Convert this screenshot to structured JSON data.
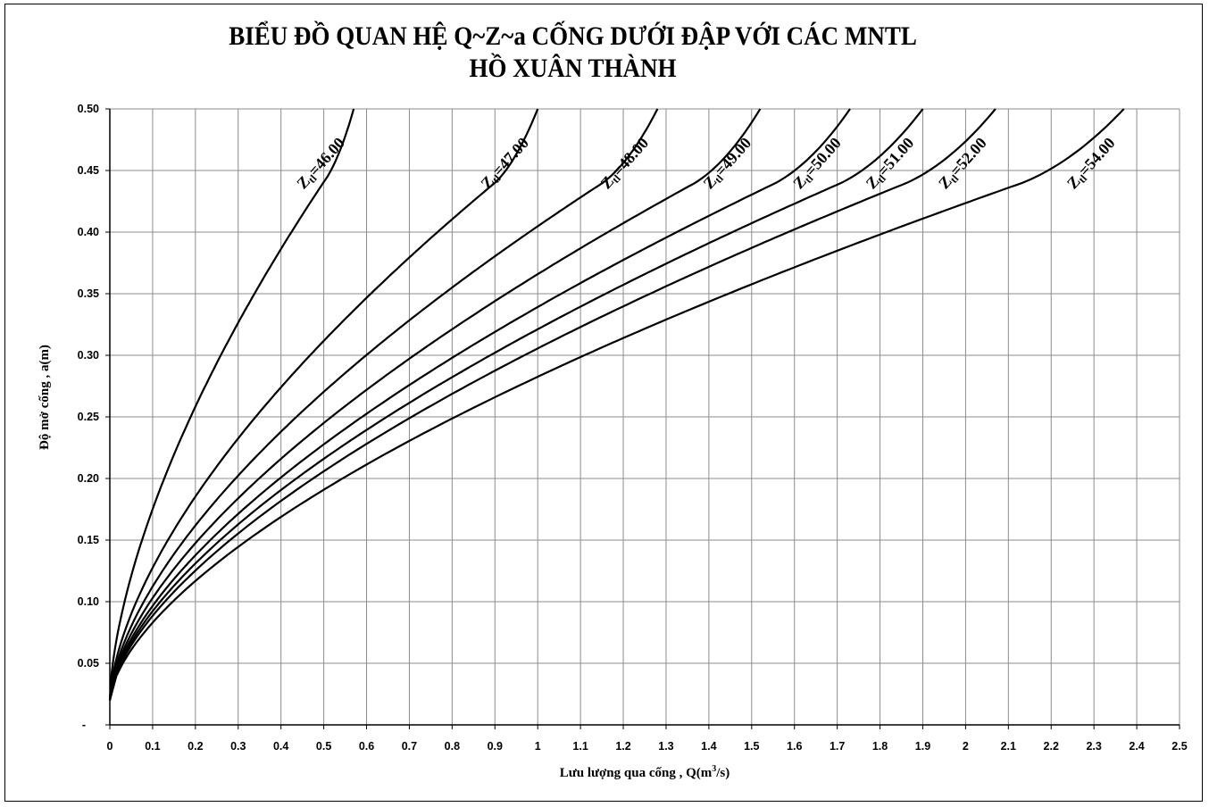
{
  "chart_data": {
    "type": "line",
    "title": "BIỂU ĐỒ QUAN HỆ Q~Z~a CỐNG DƯỚI ĐẬP VỚI CÁC MNTL",
    "subtitle": "HỒ XUÂN THÀNH",
    "xlabel_main": "Lưu lượng qua cống , Q(m",
    "xlabel_sup": "3",
    "xlabel_end": "/s)",
    "ylabel": "Độ mở cống , a(m)",
    "xlim": [
      0,
      2.5
    ],
    "ylim": [
      0,
      0.5
    ],
    "grid": true,
    "x_ticks": [
      "0",
      "0.1",
      "0.2",
      "0.3",
      "0.4",
      "0.5",
      "0.6",
      "0.7",
      "0.8",
      "0.9",
      "1",
      "1.1",
      "1.2",
      "1.3",
      "1.4",
      "1.5",
      "1.6",
      "1.7",
      "1.8",
      "1.9",
      "2",
      "2.1",
      "2.2",
      "2.3",
      "2.4",
      "2.5"
    ],
    "y_ticks": [
      "-",
      "0.05",
      "0.10",
      "0.15",
      "0.20",
      "0.25",
      "0.30",
      "0.35",
      "0.40",
      "0.45",
      "0.50"
    ],
    "series": [
      {
        "name": "Ztl=46.00",
        "label_main": "Z",
        "label_sub": "tl",
        "label_val": "=46.00",
        "qmax": 0.57,
        "a_knee": 0.44
      },
      {
        "name": "Ztl=47.00",
        "label_main": "Z",
        "label_sub": "tl",
        "label_val": "=47.00",
        "qmax": 1.0,
        "a_knee": 0.45
      },
      {
        "name": "Ztl=48.00",
        "label_main": "Z",
        "label_sub": "tl",
        "label_val": "=48.00",
        "qmax": 1.28,
        "a_knee": 0.45
      },
      {
        "name": "Ztl=49.00",
        "label_main": "Z",
        "label_sub": "tl",
        "label_val": "=49.00",
        "qmax": 1.52,
        "a_knee": 0.45
      },
      {
        "name": "Ztl=50.00",
        "label_main": "Z",
        "label_sub": "tl",
        "label_val": "=50.00",
        "qmax": 1.73,
        "a_knee": 0.45
      },
      {
        "name": "Ztl=51.00",
        "label_main": "Z",
        "label_sub": "tl",
        "label_val": "=51.00",
        "qmax": 1.9,
        "a_knee": 0.45
      },
      {
        "name": "Ztl=52.00",
        "label_main": "Z",
        "label_sub": "tl",
        "label_val": "=52.00",
        "qmax": 2.07,
        "a_knee": 0.45
      },
      {
        "name": "Ztl=54.00",
        "label_main": "Z",
        "label_sub": "tl",
        "label_val": "=54.00",
        "qmax": 2.37,
        "a_knee": 0.45
      }
    ]
  }
}
